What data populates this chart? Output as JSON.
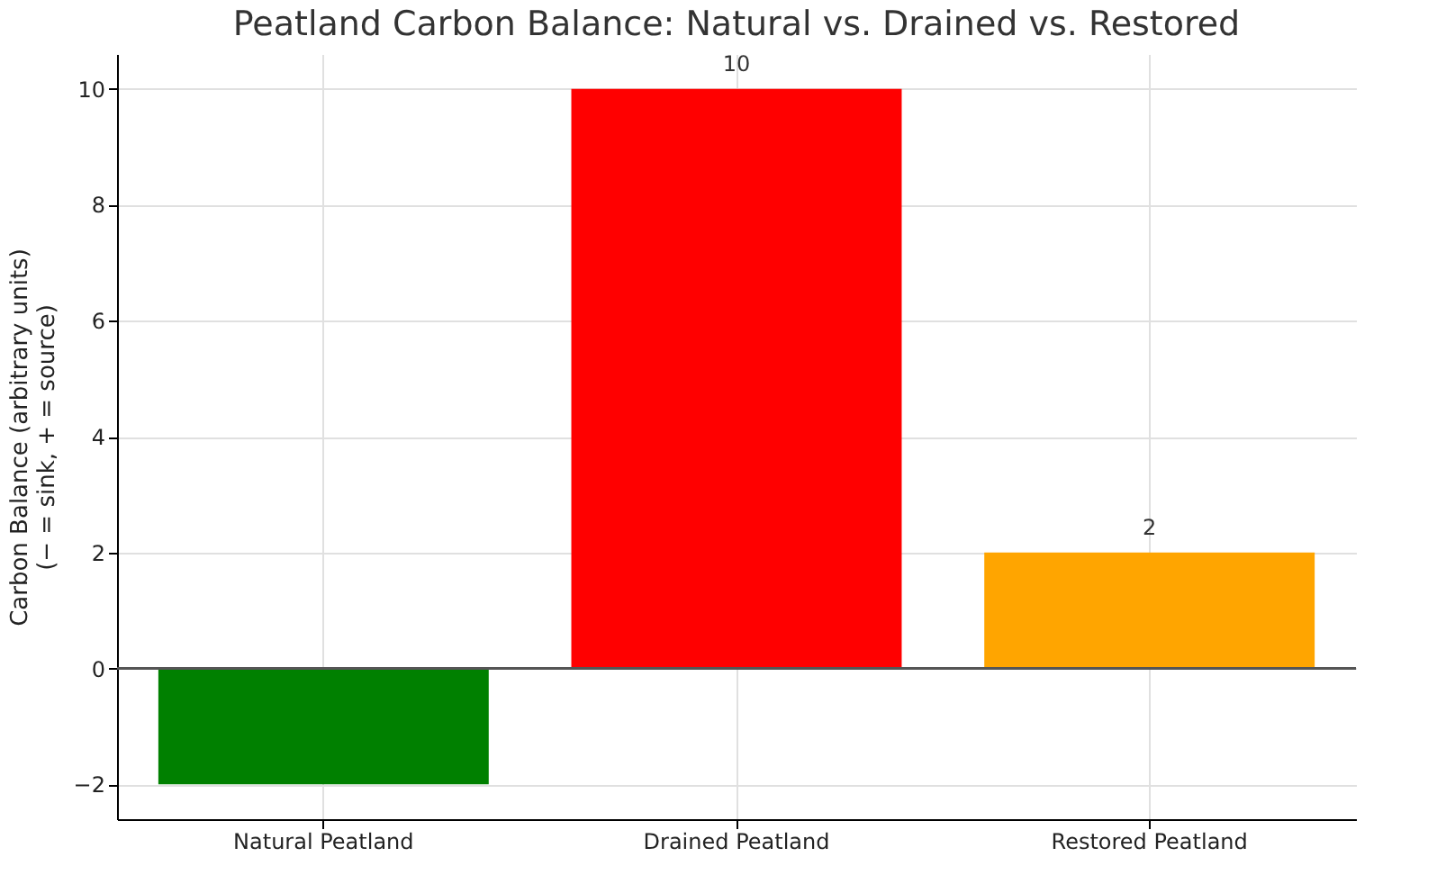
{
  "chart_data": {
    "type": "bar",
    "title": "Peatland Carbon Balance: Natural vs. Drained vs. Restored",
    "ylabel": "Carbon Balance (arbitrary units)\n(− = sink, + = source)",
    "categories": [
      "Natural Peatland",
      "Drained Peatland",
      "Restored Peatland"
    ],
    "values": [
      -2,
      10,
      2
    ],
    "colors": [
      "#008000",
      "#ff0000",
      "#ffa500"
    ],
    "value_labels": [
      null,
      "10",
      "2"
    ],
    "ylim": [
      -2.6,
      10.6
    ],
    "yticks": [
      -2,
      0,
      2,
      4,
      6,
      8,
      10
    ],
    "grid": true,
    "ref_lines": [
      {
        "axis": "y",
        "value": 0,
        "color": "#555555"
      }
    ]
  }
}
